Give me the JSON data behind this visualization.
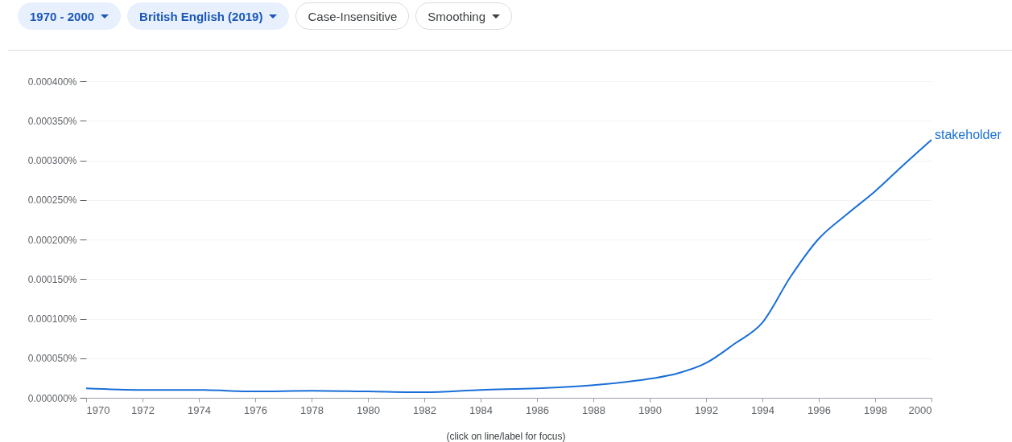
{
  "chart_data": {
    "type": "line",
    "annotations": [
      "1970 - 2000",
      "British English (2019)",
      "Case-Insensitive",
      "Smoothing",
      "(click on line/label for focus)"
    ],
    "x": [
      1970,
      1972,
      1974,
      1976,
      1978,
      1980,
      1982,
      1984,
      1986,
      1988,
      1990,
      1991,
      1992,
      1993,
      1994,
      1995,
      1996,
      1997,
      1998,
      1999,
      2000
    ],
    "series": [
      {
        "name": "stakeholder",
        "color": "#1a6fd8",
        "values": [
          1.2e-05,
          1e-05,
          1e-05,
          8e-06,
          9e-06,
          8e-06,
          7e-06,
          1e-05,
          1.2e-05,
          1.6e-05,
          2.4e-05,
          3.1e-05,
          4.4e-05,
          6.8e-05,
          9.5e-05,
          0.000153,
          0.000201,
          0.000232,
          0.000261,
          0.000294,
          0.000326
        ]
      }
    ],
    "xlim": [
      1970,
      2000
    ],
    "xticks": [
      1970,
      1972,
      1974,
      1976,
      1978,
      1980,
      1982,
      1984,
      1986,
      1988,
      1990,
      1992,
      1994,
      1996,
      1998,
      2000
    ],
    "ylim": [
      0,
      0.0004
    ],
    "yticks": [
      {
        "value": 0,
        "label": "0.000000%"
      },
      {
        "value": 5e-05,
        "label": "0.000050%"
      },
      {
        "value": 0.0001,
        "label": "0.000100%"
      },
      {
        "value": 0.00015,
        "label": "0.000150%"
      },
      {
        "value": 0.0002,
        "label": "0.000200%"
      },
      {
        "value": 0.00025,
        "label": "0.000250%"
      },
      {
        "value": 0.0003,
        "label": "0.000300%"
      },
      {
        "value": 0.00035,
        "label": "0.000350%"
      },
      {
        "value": 0.0004,
        "label": "0.000400%"
      }
    ],
    "grid": "y",
    "marker": "none",
    "line_style": "solid"
  }
}
